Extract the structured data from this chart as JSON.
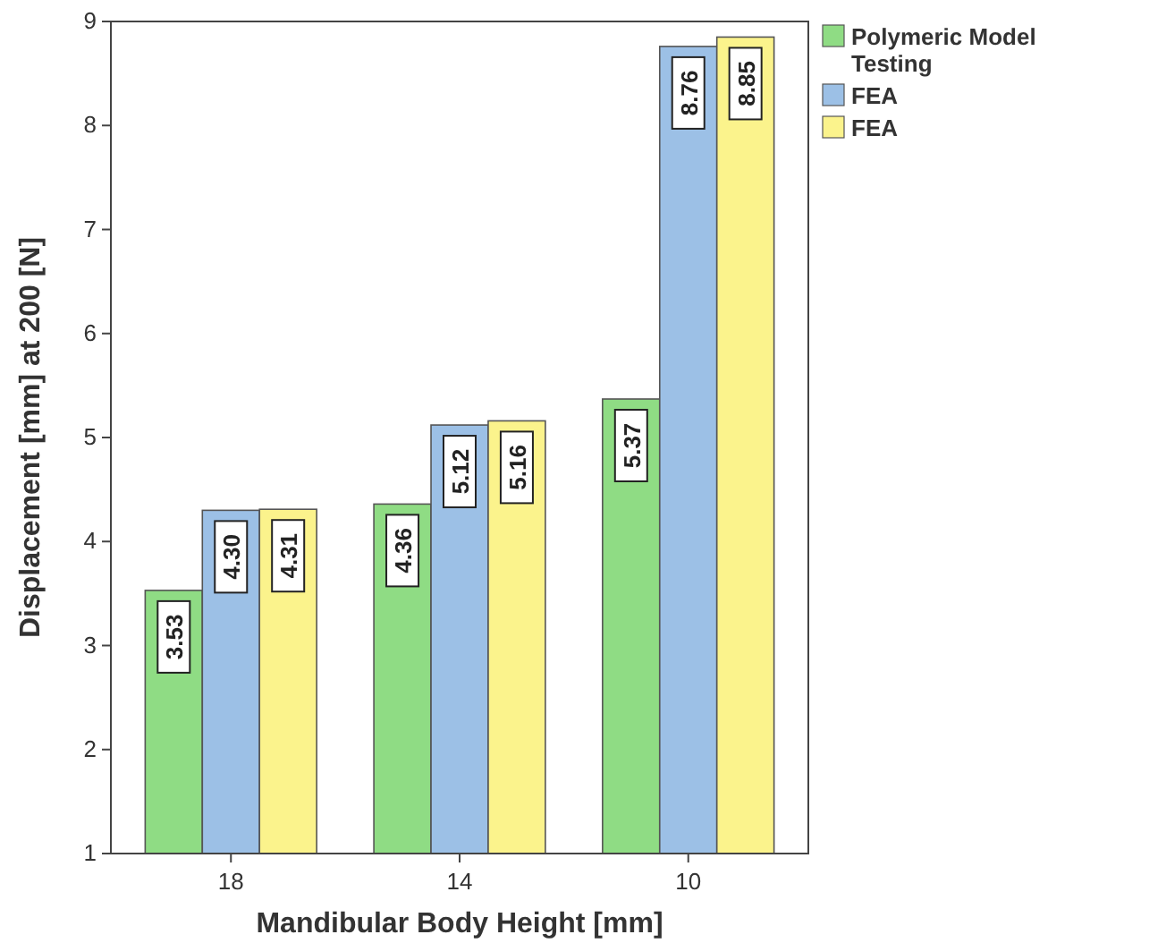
{
  "chart_data": {
    "type": "bar",
    "xlabel": "Mandibular Body Height [mm]",
    "ylabel": "Displacement [mm] at 200 [N]",
    "categories": [
      "18",
      "14",
      "10"
    ],
    "series": [
      {
        "name": "Polymeric Model Testing",
        "color": "#8fdc84",
        "values": [
          3.53,
          4.36,
          5.37
        ],
        "value_labels": [
          "3.53",
          "4.36",
          "5.37"
        ]
      },
      {
        "name": "FEA",
        "color": "#9cc0e6",
        "values": [
          4.3,
          5.12,
          8.76
        ],
        "value_labels": [
          "4.30",
          "5.12",
          "8.76"
        ]
      },
      {
        "name": "FEA",
        "color": "#fbf38c",
        "values": [
          4.31,
          5.16,
          8.85
        ],
        "value_labels": [
          "4.31",
          "5.16",
          "8.85"
        ]
      }
    ],
    "ylim": [
      1,
      9
    ],
    "yticks": [
      1,
      2,
      3,
      4,
      5,
      6,
      7,
      8,
      9
    ],
    "grid": false,
    "legend": "top right"
  }
}
